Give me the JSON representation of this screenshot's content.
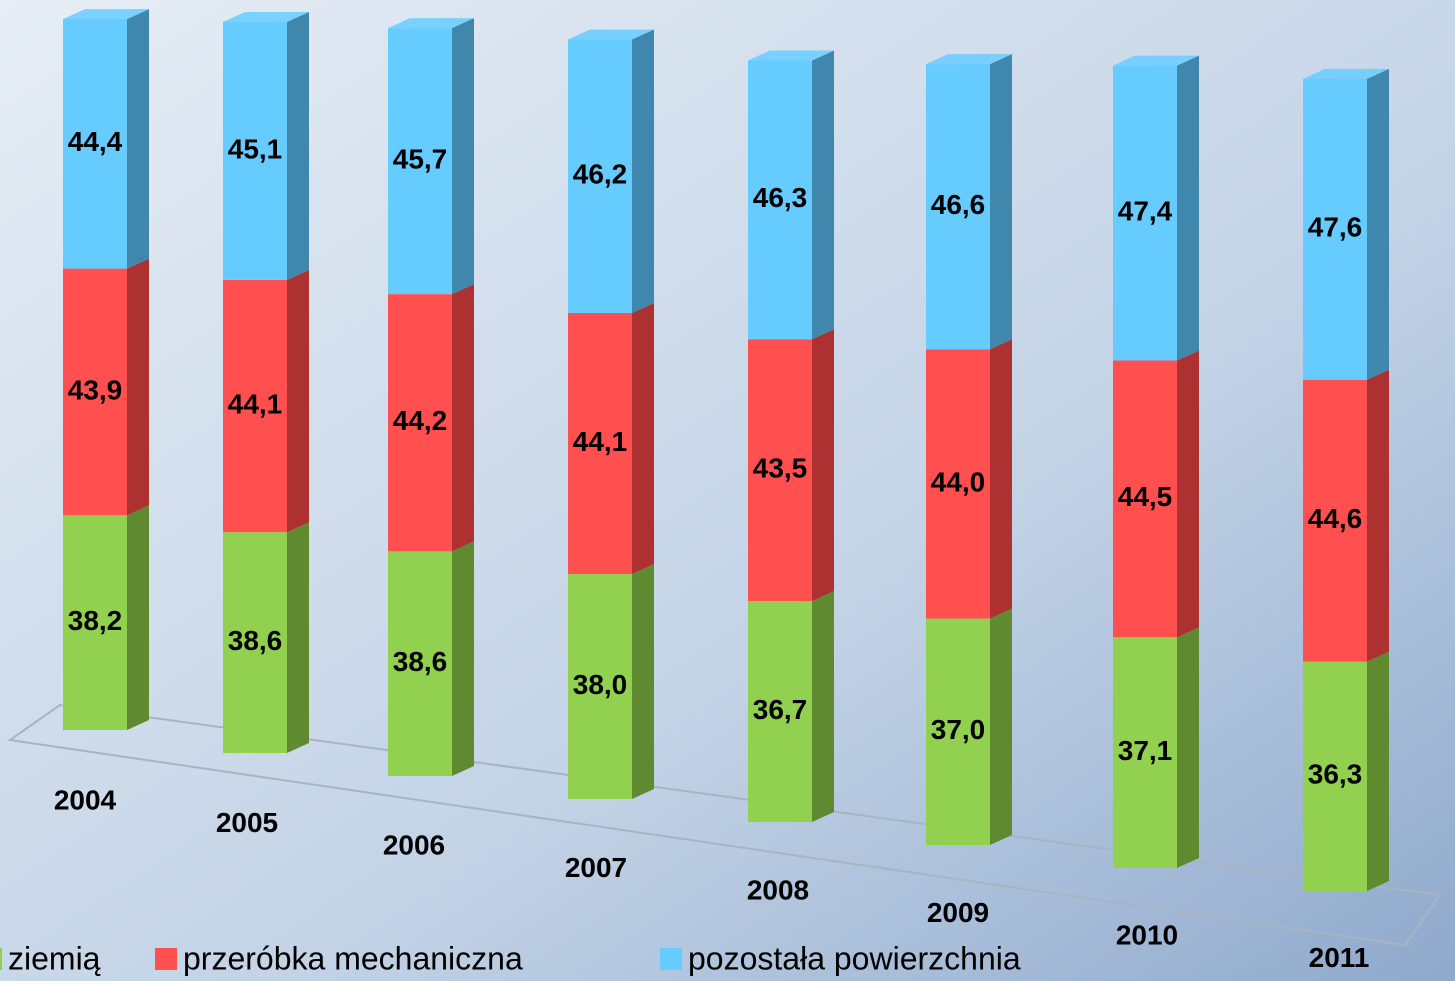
{
  "chart_data": {
    "type": "bar3d_stacked",
    "categories": [
      "2004",
      "2005",
      "2006",
      "2007",
      "2008",
      "2009",
      "2010",
      "2011"
    ],
    "series": [
      {
        "name": "ziemią",
        "color": "#92d050",
        "side": "#5f8a2f",
        "values": [
          38.2,
          38.6,
          38.6,
          38.0,
          36.7,
          37.0,
          37.1,
          36.3
        ],
        "value_labels": [
          "38,2",
          "38,6",
          "38,6",
          "38,0",
          "36,7",
          "37,0",
          "37,1",
          "36,3"
        ]
      },
      {
        "name": "przeróbka mechaniczna",
        "color": "#ff4f4f",
        "side": "#ad3131",
        "values": [
          43.9,
          44.1,
          44.2,
          44.1,
          43.5,
          44.0,
          44.5,
          44.6
        ],
        "value_labels": [
          "43,9",
          "44,1",
          "44,2",
          "44,1",
          "43,5",
          "44,0",
          "44,5",
          "44,6"
        ]
      },
      {
        "name": "pozostała powierzchnia",
        "color": "#66ccff",
        "side": "#3f87ad",
        "values": [
          44.4,
          45.1,
          45.7,
          46.2,
          46.3,
          46.6,
          47.4,
          47.6
        ],
        "value_labels": [
          "44,4",
          "45,1",
          "45,7",
          "46,2",
          "46,3",
          "46,6",
          "47,4",
          "47,6"
        ]
      }
    ]
  }
}
